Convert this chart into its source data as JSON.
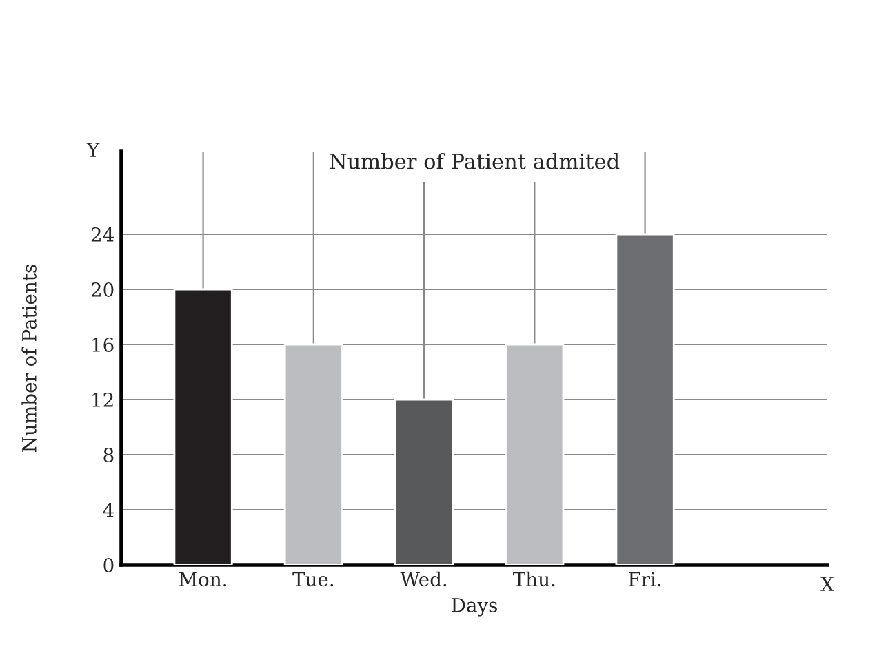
{
  "chart_data": {
    "type": "bar",
    "title": "Number of Patient admited",
    "xlabel": "Days",
    "ylabel": "Number of Patients",
    "categories": [
      "Mon.",
      "Tue.",
      "Wed.",
      "Thu.",
      "Fri."
    ],
    "values": [
      20,
      16,
      12,
      16,
      24
    ],
    "colors": [
      "#231f20",
      "#bcbdc0",
      "#58595b",
      "#bcbdc0",
      "#6d6e71"
    ],
    "ylim": [
      0,
      30
    ],
    "yticks": [
      0,
      4,
      8,
      12,
      16,
      20,
      24
    ],
    "grid": true,
    "annotations": [
      "Y",
      "X"
    ]
  }
}
